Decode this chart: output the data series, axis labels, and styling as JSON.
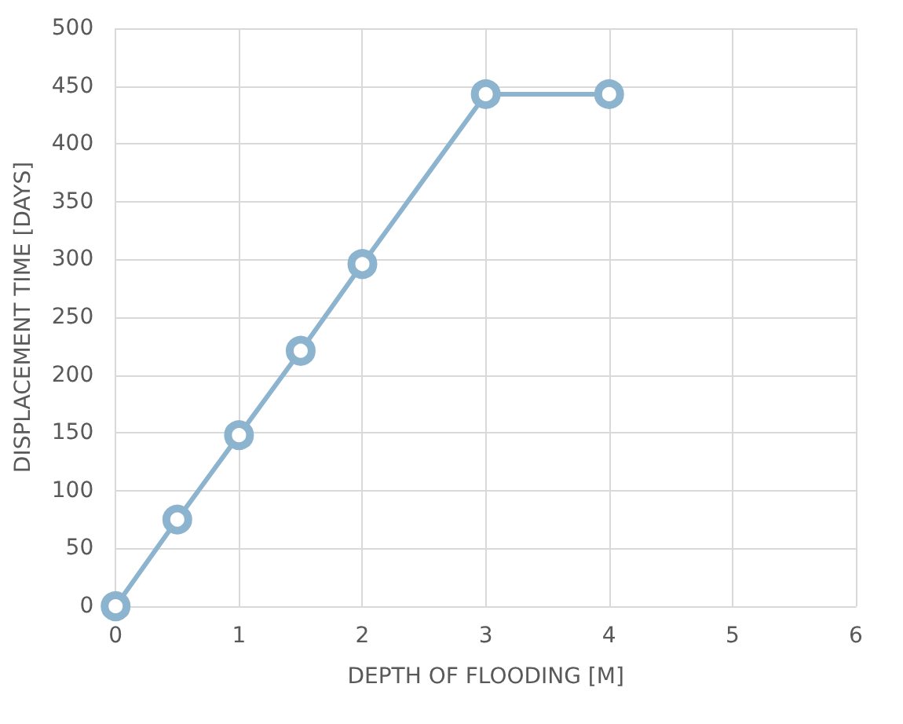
{
  "chart_data": {
    "type": "line",
    "xlabel": "DEPTH OF FLOODING [M]",
    "ylabel": "DISPLACEMENT TIME [DAYS]",
    "x": [
      0,
      0.5,
      1,
      1.5,
      2,
      3,
      4
    ],
    "series": [
      {
        "color": "#8cb4cf",
        "values": [
          0,
          75,
          148,
          221,
          296,
          443,
          443
        ]
      }
    ],
    "xlim": [
      0,
      6
    ],
    "xticks": [
      0,
      1,
      2,
      3,
      4,
      5,
      6
    ],
    "ylim": [
      0,
      500
    ],
    "yticks": [
      0,
      50,
      100,
      150,
      200,
      250,
      300,
      350,
      400,
      450,
      500
    ],
    "grid": true,
    "marker": "circle",
    "line_style": "solid"
  }
}
